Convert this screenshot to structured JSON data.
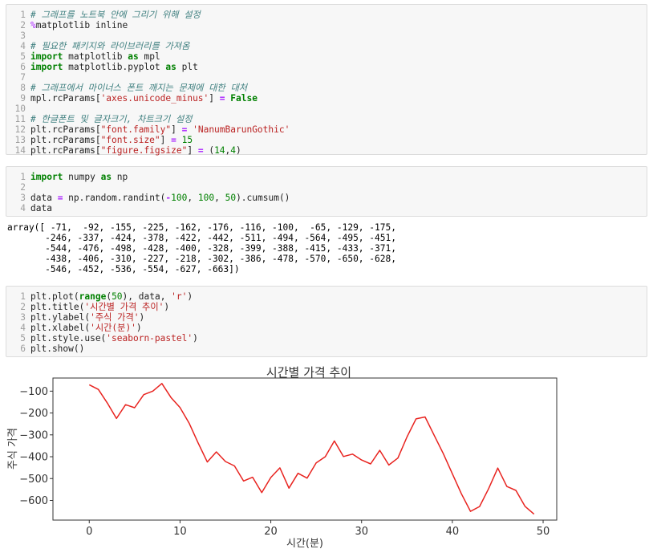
{
  "cells": [
    {
      "top": 5,
      "height": 188,
      "lines": [
        [
          [
            "cm",
            "# 그래프를 노트북 안에 그리기 위해 설정"
          ]
        ],
        [
          [
            "mg",
            "%"
          ],
          [
            "",
            "matplotlib inline"
          ]
        ],
        [],
        [
          [
            "cm",
            "# 필요한 패키지와 라이브러리를 가져옴"
          ]
        ],
        [
          [
            "kw",
            "import"
          ],
          [
            "",
            " matplotlib "
          ],
          [
            "kw",
            "as"
          ],
          [
            "",
            " mpl"
          ]
        ],
        [
          [
            "kw",
            "import"
          ],
          [
            "",
            " matplotlib.pyplot "
          ],
          [
            "kw",
            "as"
          ],
          [
            "",
            " plt"
          ]
        ],
        [],
        [
          [
            "cm",
            "# 그래프에서 마이너스 폰트 깨지는 문제에 대한 대처"
          ]
        ],
        [
          [
            "",
            "mpl.rcParams["
          ],
          [
            "st",
            "'axes.unicode_minus'"
          ],
          [
            "",
            "] "
          ],
          [
            "op",
            "="
          ],
          [
            "",
            " "
          ],
          [
            "kw",
            "False"
          ]
        ],
        [],
        [
          [
            "cm",
            "# 한글폰트 및 글자크기, 차트크기 설정"
          ]
        ],
        [
          [
            "",
            "plt.rcParams["
          ],
          [
            "st",
            "\"font.family\""
          ],
          [
            "",
            "] "
          ],
          [
            "op",
            "="
          ],
          [
            "",
            " "
          ],
          [
            "st",
            "'NanumBarunGothic'"
          ]
        ],
        [
          [
            "",
            "plt.rcParams["
          ],
          [
            "st",
            "\"font.size\""
          ],
          [
            "",
            "] "
          ],
          [
            "op",
            "="
          ],
          [
            "",
            " "
          ],
          [
            "nu",
            "15"
          ]
        ],
        [
          [
            "",
            "plt.rcParams["
          ],
          [
            "st",
            "\"figure.figsize\""
          ],
          [
            "",
            "] "
          ],
          [
            "op",
            "="
          ],
          [
            "",
            " ("
          ],
          [
            "nu",
            "14"
          ],
          [
            "",
            ","
          ],
          [
            "nu",
            "4"
          ],
          [
            "",
            ")"
          ]
        ]
      ]
    },
    {
      "top": 207,
      "height": 63,
      "lines": [
        [
          [
            "kw",
            "import"
          ],
          [
            "",
            " numpy "
          ],
          [
            "kw",
            "as"
          ],
          [
            "",
            " np"
          ]
        ],
        [],
        [
          [
            "",
            "data "
          ],
          [
            "op",
            "="
          ],
          [
            "",
            " np.random.randint("
          ],
          [
            "op",
            "-"
          ],
          [
            "nu",
            "100"
          ],
          [
            "",
            ", "
          ],
          [
            "nu",
            "100"
          ],
          [
            "",
            ", "
          ],
          [
            "nu",
            "50"
          ],
          [
            "",
            ").cumsum()"
          ]
        ],
        [
          [
            "",
            "data"
          ]
        ]
      ]
    },
    {
      "top": 356,
      "height": 89,
      "lines": [
        [
          [
            "",
            "plt.plot("
          ],
          [
            "kw",
            "range"
          ],
          [
            "",
            "("
          ],
          [
            "nu",
            "50"
          ],
          [
            "",
            "), data, "
          ],
          [
            "st",
            "'r'"
          ],
          [
            "",
            ")"
          ]
        ],
        [
          [
            "",
            "plt.title("
          ],
          [
            "st",
            "'시간별 가격 추이'"
          ],
          [
            "",
            ")"
          ]
        ],
        [
          [
            "",
            "plt.ylabel("
          ],
          [
            "st",
            "'주식 가격'"
          ],
          [
            "",
            ")"
          ]
        ],
        [
          [
            "",
            "plt.xlabel("
          ],
          [
            "st",
            "'시간(분)'"
          ],
          [
            "",
            ")"
          ]
        ],
        [
          [
            "",
            "plt.style.use("
          ],
          [
            "st",
            "'seaborn-pastel'"
          ],
          [
            "",
            ")"
          ]
        ],
        [
          [
            "",
            "plt.show()"
          ]
        ]
      ]
    }
  ],
  "output": {
    "top": 277,
    "lines": [
      "array([ -71,  -92, -155, -225, -162, -176, -116, -100,  -65, -129, -175,",
      "       -246, -337, -424, -378, -422, -442, -511, -494, -564, -495, -451,",
      "       -544, -476, -498, -428, -400, -328, -399, -388, -415, -433, -371,",
      "       -438, -406, -310, -227, -218, -302, -386, -478, -570, -650, -628,",
      "       -546, -452, -536, -554, -627, -663])"
    ]
  },
  "chart_data": {
    "type": "line",
    "title": "시간별 가격 추이",
    "xlabel": "시간(분)",
    "ylabel": "주식 가격",
    "xlim": [
      -4,
      51.5
    ],
    "ylim": [
      -690,
      -40
    ],
    "xticks": [
      0,
      10,
      20,
      30,
      40,
      50
    ],
    "yticks": [
      -100,
      -200,
      -300,
      -400,
      -500,
      -600
    ],
    "ytick_labels": [
      "−100",
      "−200",
      "−300",
      "−400",
      "−500",
      "−600"
    ],
    "line_color": "#e8231f",
    "series": [
      {
        "x": [
          0,
          1,
          2,
          3,
          4,
          5,
          6,
          7,
          8,
          9,
          10,
          11,
          12,
          13,
          14,
          15,
          16,
          17,
          18,
          19,
          20,
          21,
          22,
          23,
          24,
          25,
          26,
          27,
          28,
          29,
          30,
          31,
          32,
          33,
          34,
          35,
          36,
          37,
          38,
          39,
          40,
          41,
          42,
          43,
          44,
          45,
          46,
          47,
          48,
          49
        ],
        "values": [
          -71,
          -92,
          -155,
          -225,
          -162,
          -176,
          -116,
          -100,
          -65,
          -129,
          -175,
          -246,
          -337,
          -424,
          -378,
          -422,
          -442,
          -511,
          -494,
          -564,
          -495,
          -451,
          -544,
          -476,
          -498,
          -428,
          -400,
          -328,
          -399,
          -388,
          -415,
          -433,
          -371,
          -438,
          -406,
          -310,
          -227,
          -218,
          -302,
          -386,
          -478,
          -570,
          -650,
          -628,
          -546,
          -452,
          -536,
          -554,
          -627,
          -663
        ]
      }
    ]
  }
}
